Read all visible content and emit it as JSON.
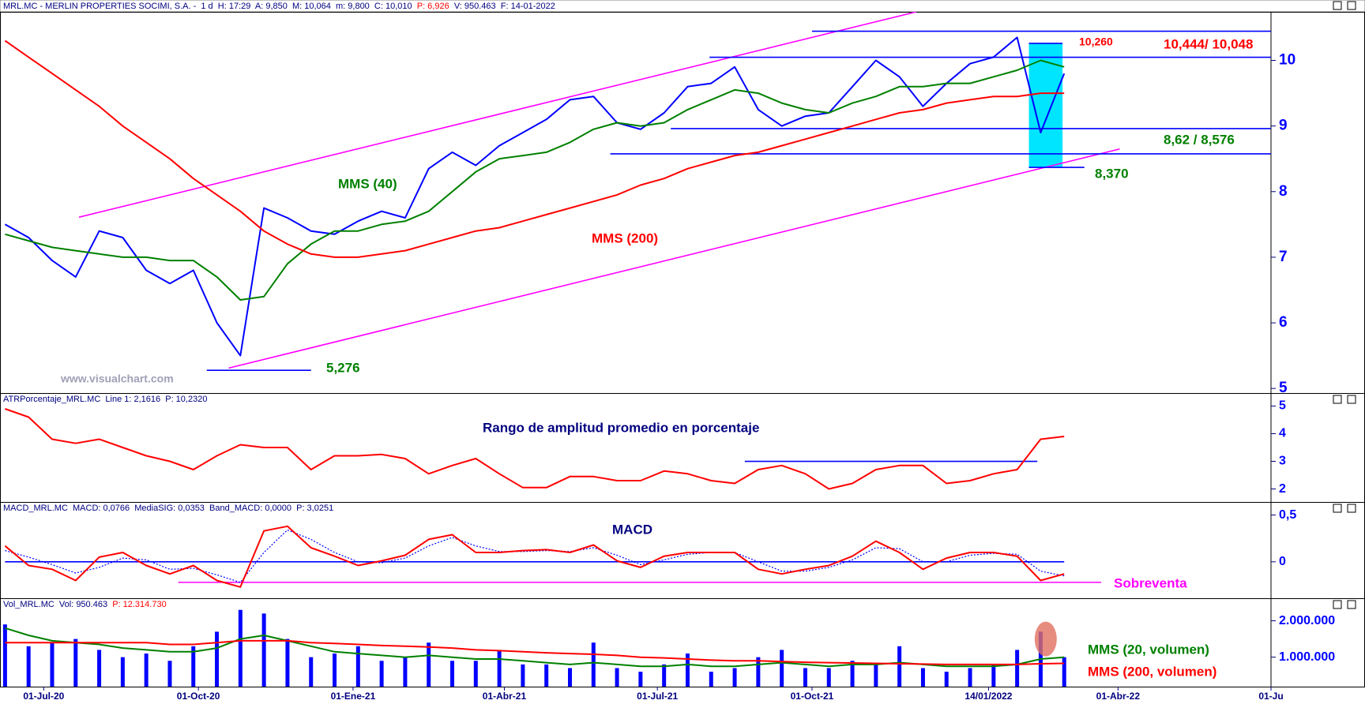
{
  "chart_data": [
    {
      "type": "line",
      "header": [
        {
          "text": "MRL.MC - MERLIN PROPERTIES SOCIMI, S.A. -  1 d  H: 17:29  A: 9,850  M: 10,064  m: 9,800  C: 10,010  ",
          "color": "#000080"
        },
        {
          "text": "P: 6,926",
          "color": "#ff0000"
        },
        {
          "text": "  V: 950.463  F: 14-01-2022",
          "color": "#000080"
        }
      ],
      "x": [
        "2020-06-08",
        "2020-06-22",
        "2020-07-06",
        "2020-07-20",
        "2020-08-03",
        "2020-08-17",
        "2020-08-31",
        "2020-09-14",
        "2020-09-28",
        "2020-10-12",
        "2020-10-26",
        "2020-11-09",
        "2020-11-23",
        "2020-12-07",
        "2020-12-21",
        "2021-01-04",
        "2021-01-18",
        "2021-02-01",
        "2021-02-15",
        "2021-03-01",
        "2021-03-15",
        "2021-03-29",
        "2021-04-12",
        "2021-04-26",
        "2021-05-10",
        "2021-05-24",
        "2021-06-07",
        "2021-06-21",
        "2021-07-05",
        "2021-07-19",
        "2021-08-02",
        "2021-08-16",
        "2021-08-30",
        "2021-09-13",
        "2021-09-27",
        "2021-10-11",
        "2021-10-25",
        "2021-11-08",
        "2021-11-22",
        "2021-12-06",
        "2021-12-20",
        "2022-01-03",
        "2022-01-17",
        "2022-01-31",
        "2022-02-14",
        "2022-02-28"
      ],
      "series": [
        {
          "color": "#0000ff",
          "values": [
            7.5,
            7.3,
            6.95,
            6.7,
            7.4,
            7.3,
            6.8,
            6.6,
            6.8,
            6.0,
            5.5,
            7.75,
            7.6,
            7.4,
            7.35,
            7.55,
            7.7,
            7.6,
            8.35,
            8.6,
            8.4,
            8.7,
            8.9,
            9.1,
            9.4,
            9.45,
            9.05,
            8.95,
            9.2,
            9.6,
            9.65,
            9.9,
            9.25,
            9.0,
            9.15,
            9.2,
            9.6,
            10.0,
            9.75,
            9.3,
            9.65,
            9.95,
            10.05,
            10.35,
            8.9,
            9.8
          ]
        },
        {
          "name": "MMS (40)",
          "color": "#008000",
          "values": [
            7.35,
            7.25,
            7.15,
            7.1,
            7.05,
            7.0,
            7.0,
            6.95,
            6.95,
            6.7,
            6.35,
            6.4,
            6.9,
            7.2,
            7.4,
            7.4,
            7.5,
            7.55,
            7.7,
            8.0,
            8.3,
            8.5,
            8.55,
            8.6,
            8.75,
            8.95,
            9.05,
            9.0,
            9.05,
            9.25,
            9.4,
            9.55,
            9.5,
            9.35,
            9.25,
            9.2,
            9.35,
            9.45,
            9.6,
            9.6,
            9.65,
            9.65,
            9.75,
            9.85,
            10.0,
            9.9
          ]
        },
        {
          "name": "MMS (200)",
          "color": "#ff0000",
          "values": [
            10.3,
            10.05,
            9.8,
            9.55,
            9.3,
            9.0,
            8.75,
            8.5,
            8.2,
            7.95,
            7.7,
            7.4,
            7.2,
            7.05,
            7.0,
            7.0,
            7.05,
            7.1,
            7.2,
            7.3,
            7.4,
            7.45,
            7.55,
            7.65,
            7.75,
            7.85,
            7.95,
            8.1,
            8.2,
            8.35,
            8.45,
            8.55,
            8.6,
            8.7,
            8.8,
            8.9,
            9.0,
            9.1,
            9.2,
            9.25,
            9.35,
            9.4,
            9.45,
            9.45,
            9.5,
            9.5
          ]
        }
      ],
      "xlim": [
        "2020-06-05",
        "2022-07-01"
      ],
      "ylim": [
        4.93,
        10.74
      ],
      "yticks": [
        5,
        6,
        7,
        8,
        9,
        10
      ],
      "lines": [
        {
          "x": [
            "2020-07-22",
            "2021-12-02"
          ],
          "y": [
            7.61,
            10.74
          ],
          "color": "#ff00ff"
        },
        {
          "x": [
            "2020-10-19",
            "2022-04-02"
          ],
          "y": [
            5.31,
            8.65
          ],
          "color": "#ff00ff"
        },
        {
          "x": [
            "2020-10-06",
            "2020-12-07"
          ],
          "y": [
            5.276,
            5.276
          ],
          "color": "#0000ff"
        },
        {
          "x": [
            "2021-10-01",
            "2022-07-01"
          ],
          "y": [
            10.444,
            10.444
          ],
          "color": "#0000ff"
        },
        {
          "x": [
            "2021-08-01",
            "2022-07-01"
          ],
          "y": [
            10.048,
            10.048
          ],
          "color": "#0000ff"
        },
        {
          "x": [
            "2021-07-09",
            "2022-07-01"
          ],
          "y": [
            8.96,
            8.96
          ],
          "color": "#0000ff"
        },
        {
          "x": [
            "2021-06-03",
            "2022-07-01"
          ],
          "y": [
            8.576,
            8.576
          ],
          "color": "#0000ff"
        },
        {
          "x": [
            "2022-02-07",
            "2022-03-12"
          ],
          "y": [
            8.37,
            8.37
          ],
          "color": "#0000ff"
        },
        {
          "x": [
            "2022-02-07",
            "2022-02-27"
          ],
          "y": [
            10.26,
            10.26
          ],
          "color": "#0000ff"
        }
      ],
      "highlight": {
        "x": [
          "2022-02-07",
          "2022-02-27"
        ],
        "y": [
          8.37,
          10.26
        ],
        "color": "#00e5ff"
      },
      "annotations": [
        {
          "text": "5,276",
          "color": "#008000"
        },
        {
          "text": "8,370",
          "color": "#008000"
        },
        {
          "text": "8,62 / 8,576",
          "color": "#008000"
        },
        {
          "text": "10,444/ 10,048",
          "color": "#ff0000"
        },
        {
          "text": "10,260",
          "color": "#ff0000"
        },
        {
          "text": "www.visualchart.com",
          "color": "#a0a0b8"
        }
      ]
    },
    {
      "type": "line",
      "header": [
        {
          "text": "ATRPorcentaje_MRL.MC  Line 1: 2,1616  P: 10,2320",
          "color": "#000080"
        }
      ],
      "x": [
        "2020-06-08",
        "2020-06-22",
        "2020-07-06",
        "2020-07-20",
        "2020-08-03",
        "2020-08-17",
        "2020-08-31",
        "2020-09-14",
        "2020-09-28",
        "2020-10-12",
        "2020-10-26",
        "2020-11-09",
        "2020-11-23",
        "2020-12-07",
        "2020-12-21",
        "2021-01-04",
        "2021-01-18",
        "2021-02-01",
        "2021-02-15",
        "2021-03-01",
        "2021-03-15",
        "2021-03-29",
        "2021-04-12",
        "2021-04-26",
        "2021-05-10",
        "2021-05-24",
        "2021-06-07",
        "2021-06-21",
        "2021-07-05",
        "2021-07-19",
        "2021-08-02",
        "2021-08-16",
        "2021-08-30",
        "2021-09-13",
        "2021-09-27",
        "2021-10-11",
        "2021-10-25",
        "2021-11-08",
        "2021-11-22",
        "2021-12-06",
        "2021-12-20",
        "2022-01-03",
        "2022-01-17",
        "2022-01-31",
        "2022-02-14",
        "2022-02-28"
      ],
      "series": [
        {
          "color": "#ff0000",
          "values": [
            4.9,
            4.6,
            3.8,
            3.65,
            3.8,
            3.5,
            3.2,
            3.0,
            2.7,
            3.2,
            3.6,
            3.5,
            3.5,
            2.7,
            3.2,
            3.2,
            3.25,
            3.1,
            2.55,
            2.85,
            3.1,
            2.55,
            2.05,
            2.05,
            2.45,
            2.45,
            2.3,
            2.3,
            2.65,
            2.55,
            2.3,
            2.2,
            2.7,
            2.85,
            2.55,
            2.0,
            2.2,
            2.7,
            2.85,
            2.85,
            2.2,
            2.3,
            2.55,
            2.7,
            3.8,
            3.9
          ]
        }
      ],
      "xlim": [
        "2020-06-05",
        "2022-07-01"
      ],
      "ylim": [
        1.53,
        5.47
      ],
      "yticks": [
        2,
        3,
        4,
        5
      ],
      "lines": [
        {
          "x": [
            "2021-08-22",
            "2022-02-12"
          ],
          "y": [
            3.0,
            3.0
          ],
          "color": "#0000ff"
        }
      ],
      "annotations": [
        {
          "text": "Rango de amplitud promedio en porcentaje",
          "color": "#000080"
        }
      ]
    },
    {
      "type": "line",
      "header": [
        {
          "text": "MACD_MRL.MC  MACD: 0,0766  MediaSIG: 0,0353  Band_MACD: 0,0000  P: 3,0251",
          "color": "#000080"
        }
      ],
      "x": [
        "2020-06-08",
        "2020-06-22",
        "2020-07-06",
        "2020-07-20",
        "2020-08-03",
        "2020-08-17",
        "2020-08-31",
        "2020-09-14",
        "2020-09-28",
        "2020-10-12",
        "2020-10-26",
        "2020-11-09",
        "2020-11-23",
        "2020-12-07",
        "2020-12-21",
        "2021-01-04",
        "2021-01-18",
        "2021-02-01",
        "2021-02-15",
        "2021-03-01",
        "2021-03-15",
        "2021-03-29",
        "2021-04-12",
        "2021-04-26",
        "2021-05-10",
        "2021-05-24",
        "2021-06-07",
        "2021-06-21",
        "2021-07-05",
        "2021-07-19",
        "2021-08-02",
        "2021-08-16",
        "2021-08-30",
        "2021-09-13",
        "2021-09-27",
        "2021-10-11",
        "2021-10-25",
        "2021-11-08",
        "2021-11-22",
        "2021-12-06",
        "2021-12-20",
        "2022-01-03",
        "2022-01-17",
        "2022-01-31",
        "2022-02-14",
        "2022-02-28"
      ],
      "series": [
        {
          "color": "#0000ff",
          "dash": true,
          "values": [
            0.12,
            0.05,
            -0.03,
            -0.12,
            -0.06,
            0.04,
            0.02,
            -0.08,
            -0.07,
            -0.14,
            -0.22,
            0.1,
            0.34,
            0.24,
            0.1,
            0.0,
            -0.01,
            0.04,
            0.17,
            0.26,
            0.17,
            0.11,
            0.11,
            0.12,
            0.11,
            0.15,
            0.07,
            -0.03,
            0.02,
            0.08,
            0.1,
            0.1,
            0.0,
            -0.1,
            -0.1,
            -0.06,
            0.02,
            0.15,
            0.14,
            0.0,
            0.0,
            0.07,
            0.09,
            0.08,
            -0.1,
            -0.15
          ]
        },
        {
          "color": "#ff0000",
          "values": [
            0.17,
            -0.04,
            -0.08,
            -0.2,
            0.05,
            0.1,
            -0.04,
            -0.13,
            -0.04,
            -0.2,
            -0.27,
            0.33,
            0.38,
            0.15,
            0.06,
            -0.04,
            0.01,
            0.07,
            0.24,
            0.29,
            0.1,
            0.1,
            0.12,
            0.13,
            0.1,
            0.18,
            0.01,
            -0.06,
            0.06,
            0.1,
            0.1,
            0.1,
            -0.08,
            -0.13,
            -0.08,
            -0.04,
            0.06,
            0.22,
            0.1,
            -0.08,
            0.04,
            0.1,
            0.1,
            0.06,
            -0.2,
            -0.13
          ]
        }
      ],
      "xlim": [
        "2020-06-05",
        "2022-07-01"
      ],
      "ylim": [
        -0.39,
        0.64
      ],
      "yticks": [
        0,
        {
          "value": 0.5,
          "label": "0,5"
        }
      ],
      "lines": [
        {
          "x": [
            "2020-06-08",
            "2022-02-28"
          ],
          "y": [
            0,
            0
          ],
          "color": "#0000ff"
        },
        {
          "x": [
            "2020-09-19",
            "2022-03-22"
          ],
          "y": [
            -0.22,
            -0.22
          ],
          "color": "#ff00ff"
        }
      ],
      "annotations": [
        {
          "text": "MACD",
          "color": "#000080"
        },
        {
          "text": "Sobreventa",
          "color": "#ff00ff"
        }
      ]
    },
    {
      "type": "bar",
      "header": [
        {
          "text": "Vol_MRL.MC  Vol: 950.463  ",
          "color": "#000080"
        },
        {
          "text": "P: 12.314.730",
          "color": "#ff0000"
        }
      ],
      "x": [
        "2020-06-08",
        "2020-06-22",
        "2020-07-06",
        "2020-07-20",
        "2020-08-03",
        "2020-08-17",
        "2020-08-31",
        "2020-09-14",
        "2020-09-28",
        "2020-10-12",
        "2020-10-26",
        "2020-11-09",
        "2020-11-23",
        "2020-12-07",
        "2020-12-21",
        "2021-01-04",
        "2021-01-18",
        "2021-02-01",
        "2021-02-15",
        "2021-03-01",
        "2021-03-15",
        "2021-03-29",
        "2021-04-12",
        "2021-04-26",
        "2021-05-10",
        "2021-05-24",
        "2021-06-07",
        "2021-06-21",
        "2021-07-05",
        "2021-07-19",
        "2021-08-02",
        "2021-08-16",
        "2021-08-30",
        "2021-09-13",
        "2021-09-27",
        "2021-10-11",
        "2021-10-25",
        "2021-11-08",
        "2021-11-22",
        "2021-12-06",
        "2021-12-20",
        "2022-01-03",
        "2022-01-17",
        "2022-01-31",
        "2022-02-14",
        "2022-02-28"
      ],
      "series": [
        {
          "type": "bar",
          "color": "#0000ff",
          "values": [
            1900000,
            1300000,
            1400000,
            1500000,
            1200000,
            1000000,
            1100000,
            900000,
            1300000,
            1700000,
            2300000,
            2200000,
            1500000,
            1000000,
            1100000,
            1300000,
            900000,
            1000000,
            1400000,
            900000,
            900000,
            1200000,
            800000,
            800000,
            700000,
            1400000,
            700000,
            600000,
            800000,
            1100000,
            600000,
            700000,
            1000000,
            1200000,
            700000,
            700000,
            900000,
            800000,
            1300000,
            700000,
            600000,
            700000,
            800000,
            1200000,
            1700000,
            1000000
          ]
        },
        {
          "name": "MMS (20, volumen)",
          "color": "#008000",
          "values": [
            1800000,
            1600000,
            1450000,
            1400000,
            1350000,
            1250000,
            1200000,
            1150000,
            1150000,
            1250000,
            1500000,
            1600000,
            1450000,
            1300000,
            1150000,
            1100000,
            1050000,
            1000000,
            1050000,
            1000000,
            950000,
            950000,
            900000,
            850000,
            800000,
            850000,
            800000,
            750000,
            750000,
            800000,
            750000,
            750000,
            800000,
            850000,
            800000,
            750000,
            800000,
            800000,
            850000,
            800000,
            750000,
            750000,
            750000,
            800000,
            950000,
            1000000
          ]
        },
        {
          "name": "MMS (200, volumen)",
          "color": "#ff0000",
          "values": [
            1400000,
            1400000,
            1400000,
            1400000,
            1400000,
            1400000,
            1400000,
            1350000,
            1350000,
            1400000,
            1450000,
            1450000,
            1450000,
            1400000,
            1380000,
            1350000,
            1320000,
            1300000,
            1280000,
            1250000,
            1200000,
            1180000,
            1150000,
            1120000,
            1100000,
            1080000,
            1050000,
            1000000,
            980000,
            950000,
            920000,
            900000,
            900000,
            880000,
            860000,
            850000,
            840000,
            830000,
            820000,
            810000,
            800000,
            800000,
            800000,
            800000,
            820000,
            830000
          ]
        }
      ],
      "xlim": [
        "2020-06-05",
        "2022-07-01"
      ],
      "ylim": [
        190000,
        2620000
      ],
      "yticks": [
        {
          "value": 1000000,
          "label": "1.000.000"
        },
        {
          "value": 2000000,
          "label": "2.000.000"
        }
      ],
      "xticks": [
        {
          "value": "2020-07-01",
          "label": "01-Jul-20"
        },
        {
          "value": "2020-10-01",
          "label": "01-Oct-20"
        },
        {
          "value": "2021-01-01",
          "label": "01-Ene-21"
        },
        {
          "value": "2021-04-01",
          "label": "01-Abr-21"
        },
        {
          "value": "2021-07-01",
          "label": "01-Jul-21"
        },
        {
          "value": "2021-10-01",
          "label": "01-Oct-21"
        },
        {
          "value": "2022-01-14",
          "label": "14/01/2022"
        },
        {
          "value": "2022-04-01",
          "label": "01-Abr-22"
        },
        {
          "value": "2022-07-01",
          "label": "01-Ju"
        }
      ],
      "highlight": {
        "x": "2022-02-17",
        "y": 1500000,
        "color": "#e07060"
      }
    }
  ]
}
